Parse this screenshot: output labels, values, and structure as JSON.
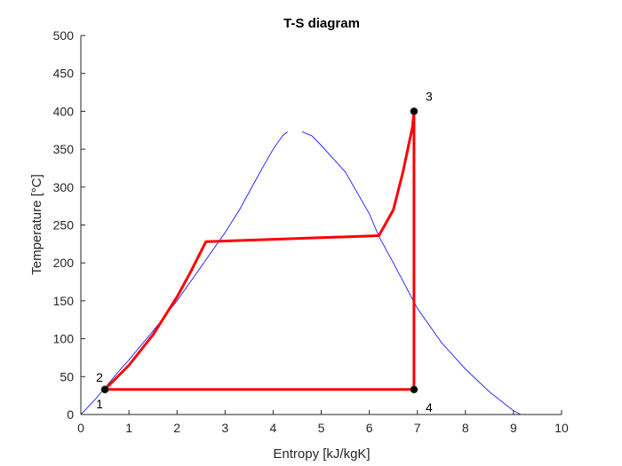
{
  "chart_data": {
    "type": "line",
    "title": "T-S diagram",
    "xlabel": "Entropy [kJ/kgK]",
    "ylabel": "Temperature [°C]",
    "xlim": [
      0,
      10
    ],
    "ylim": [
      0,
      500
    ],
    "x_ticks": [
      "0",
      "1",
      "2",
      "3",
      "4",
      "5",
      "6",
      "7",
      "8",
      "9",
      "10"
    ],
    "y_ticks": [
      "0",
      "50",
      "100",
      "150",
      "200",
      "250",
      "300",
      "350",
      "400",
      "450",
      "500"
    ],
    "grid": false,
    "colors": {
      "saturation": "#0000ff",
      "cycle": "#ff0000",
      "point": "#000000",
      "axis": "#262626"
    },
    "series": [
      {
        "role": "saturation-liquid",
        "x": [
          0.0,
          0.3,
          0.5,
          0.8,
          1.0,
          1.5,
          2.0,
          2.5,
          2.8,
          3.0,
          3.3,
          3.6,
          3.8,
          4.0,
          4.2,
          4.3
        ],
        "y": [
          0,
          20,
          35,
          58,
          72,
          110,
          150,
          195,
          222,
          240,
          270,
          305,
          328,
          350,
          368,
          373
        ]
      },
      {
        "role": "saturation-vapor",
        "x": [
          4.6,
          4.8,
          5.0,
          5.5,
          6.0,
          6.2,
          6.5,
          7.0,
          7.5,
          8.0,
          8.5,
          9.0,
          9.15
        ],
        "y": [
          373,
          368,
          355,
          320,
          265,
          235,
          200,
          140,
          95,
          60,
          30,
          5,
          0
        ]
      },
      {
        "role": "cycle",
        "x": [
          0.5,
          1.0,
          1.5,
          2.0,
          2.3,
          2.6,
          6.2,
          6.5,
          6.7,
          6.9,
          6.93,
          6.93,
          0.5
        ],
        "y": [
          33,
          65,
          105,
          155,
          190,
          228,
          236,
          270,
          320,
          380,
          400,
          33,
          33
        ]
      }
    ],
    "points": [
      {
        "label": "1",
        "x": 0.5,
        "y": 33
      },
      {
        "label": "2",
        "x": 0.5,
        "y": 33
      },
      {
        "label": "3",
        "x": 6.93,
        "y": 400
      },
      {
        "label": "4",
        "x": 6.93,
        "y": 33
      }
    ]
  }
}
